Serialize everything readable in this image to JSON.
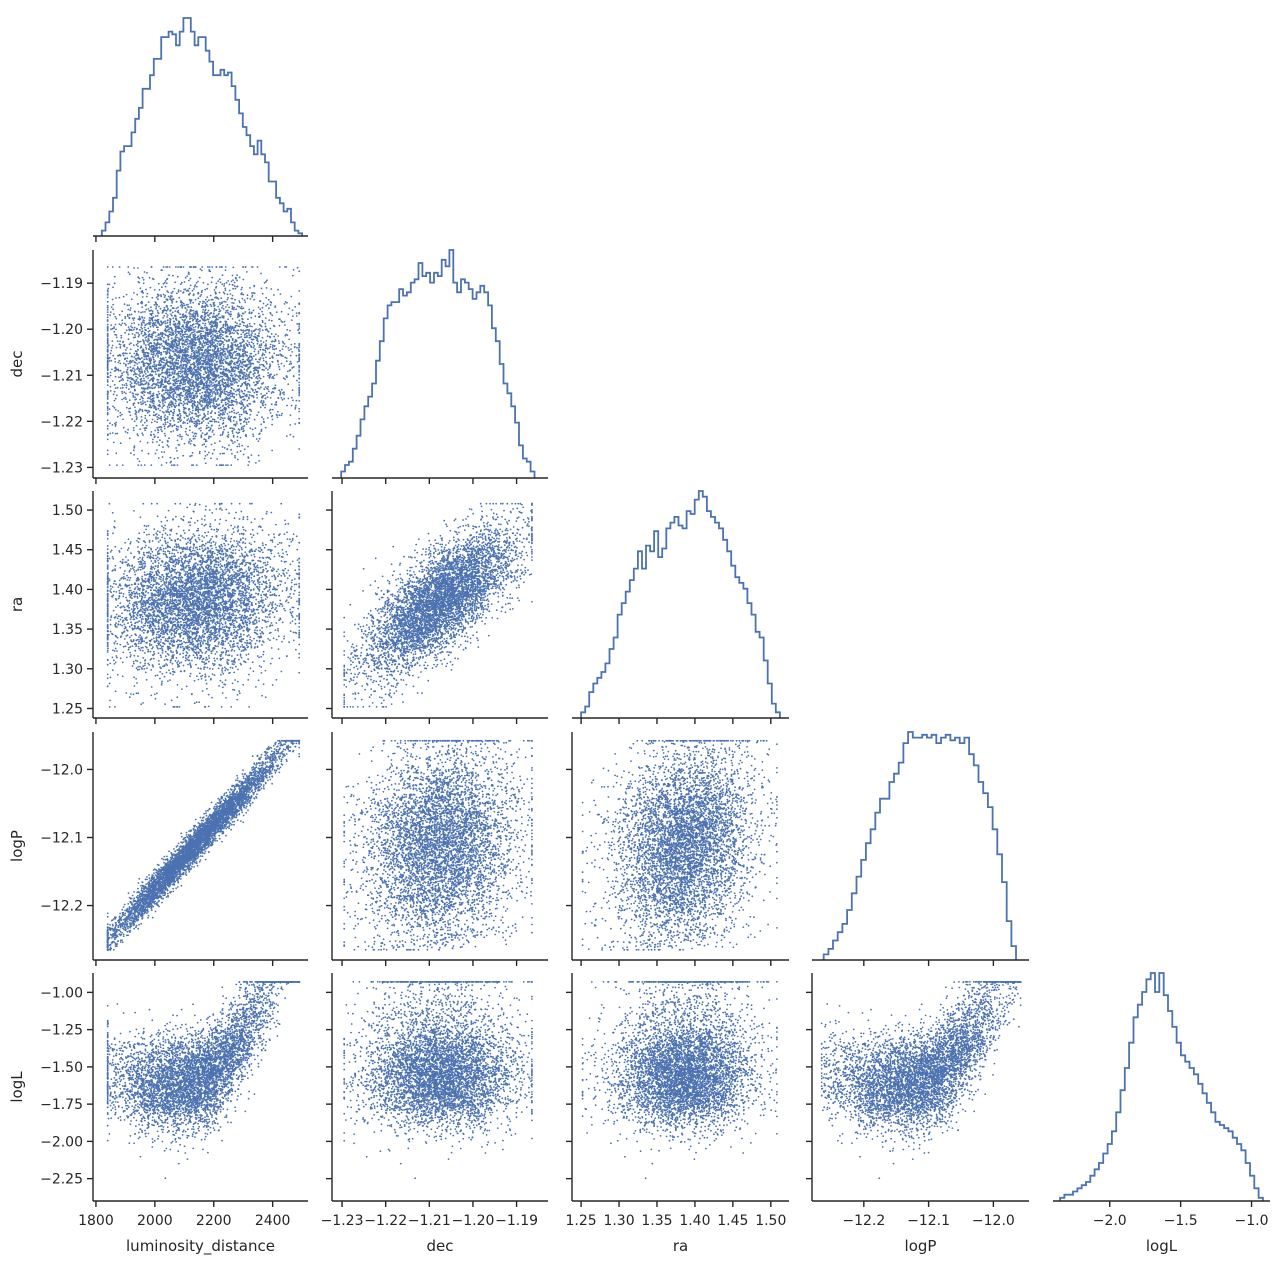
{
  "chart_data": {
    "type": "scatter",
    "layout": "corner-pairplot",
    "colors": {
      "series": "#4c72b0",
      "axis": "#262626",
      "background": "#ffffff"
    },
    "variables": [
      {
        "name": "luminosity_distance",
        "range": [
          1790,
          2520
        ],
        "ticks": [
          1800,
          2000,
          2200,
          2400
        ],
        "tick_labels": [
          "1800",
          "2000",
          "2200",
          "2400"
        ]
      },
      {
        "name": "dec",
        "range": [
          -1.2323,
          -1.1828
        ],
        "ticks": [
          -1.23,
          -1.22,
          -1.21,
          -1.2,
          -1.19
        ],
        "tick_labels": [
          "−1.23",
          "−1.22",
          "−1.21",
          "−1.20",
          "−1.19"
        ]
      },
      {
        "name": "ra",
        "range": [
          1.238,
          1.524
        ],
        "ticks": [
          1.25,
          1.3,
          1.35,
          1.4,
          1.45,
          1.5
        ],
        "tick_labels": [
          "1.25",
          "1.30",
          "1.35",
          "1.40",
          "1.45",
          "1.50"
        ]
      },
      {
        "name": "logP",
        "range": [
          -12.28,
          -11.945
        ],
        "ticks": [
          -12.2,
          -12.1,
          -12.0
        ],
        "tick_labels": [
          "−12.2",
          "−12.1",
          "−12.0"
        ]
      },
      {
        "name": "logL",
        "range": [
          -2.4,
          -0.87
        ],
        "ticks": [
          -2.25,
          -2.0,
          -1.75,
          -1.5,
          -1.25,
          -1.0
        ],
        "tick_labels": [
          "−2.25",
          "−2.00",
          "−1.75",
          "−1.50",
          "−1.25",
          "−1.00"
        ],
        "x_ticks": [
          -2.0,
          -1.5,
          -1.0
        ],
        "x_tick_labels": [
          "−2.0",
          "−1.5",
          "−1.0"
        ]
      }
    ],
    "histograms": [
      {
        "variable": "luminosity_distance",
        "bin_edges_range": [
          1820,
          2500
        ],
        "counts": [
          2,
          5,
          9,
          14,
          24,
          31,
          33,
          33,
          38,
          43,
          47,
          54,
          54,
          59,
          65,
          65,
          73,
          73,
          75,
          74,
          70,
          75,
          80,
          80,
          75,
          70,
          73,
          73,
          68,
          64,
          59,
          59,
          61,
          59,
          60,
          55,
          50,
          45,
          40,
          37,
          33,
          30,
          35,
          30,
          27,
          20,
          20,
          14,
          12,
          9,
          10,
          5,
          2,
          1
        ]
      },
      {
        "variable": "dec",
        "bin_edges_range": [
          -1.2302,
          -1.1859
        ],
        "counts": [
          2,
          4,
          5,
          9,
          13,
          18,
          22,
          25,
          29,
          36,
          42,
          49,
          53,
          54,
          54,
          58,
          56,
          57,
          60,
          61,
          66,
          62,
          63,
          60,
          63,
          62,
          67,
          65,
          70,
          60,
          57,
          61,
          60,
          58,
          55,
          57,
          59,
          57,
          53,
          46,
          42,
          35,
          29,
          26,
          22,
          17,
          10,
          6,
          5,
          2
        ]
      },
      {
        "variable": "ra",
        "bin_edges_range": [
          1.25,
          1.512
        ],
        "counts": [
          2,
          4,
          9,
          12,
          14,
          16,
          19,
          24,
          28,
          36,
          40,
          44,
          48,
          52,
          58,
          52,
          60,
          58,
          65,
          56,
          59,
          66,
          68,
          70,
          67,
          66,
          72,
          71,
          76,
          79,
          77,
          72,
          70,
          68,
          66,
          62,
          58,
          53,
          49,
          47,
          45,
          40,
          36,
          30,
          28,
          20,
          12,
          5,
          2
        ]
      },
      {
        "variable": "logP",
        "bin_edges_range": [
          -12.262,
          -11.965
        ],
        "counts": [
          2,
          4,
          7,
          10,
          13,
          18,
          24,
          30,
          36,
          42,
          47,
          53,
          58,
          58,
          64,
          67,
          71,
          78,
          82,
          80,
          80,
          81,
          80,
          81,
          78,
          80,
          81,
          79,
          80,
          78,
          80,
          74,
          70,
          64,
          60,
          55,
          47,
          38,
          28,
          14,
          5
        ]
      },
      {
        "variable": "logL",
        "bin_edges_range": [
          -2.35,
          -0.92
        ],
        "counts": [
          1,
          2,
          2,
          3,
          4,
          5,
          6,
          8,
          10,
          12,
          15,
          18,
          22,
          28,
          35,
          42,
          50,
          58,
          62,
          66,
          70,
          72,
          66,
          72,
          65,
          60,
          55,
          50,
          46,
          44,
          42,
          40,
          37,
          34,
          31,
          28,
          25,
          24,
          23,
          22,
          20,
          18,
          16,
          12,
          8,
          4,
          1
        ]
      }
    ],
    "scatter_pairs": [
      {
        "x": "luminosity_distance",
        "y": "dec",
        "n_points": 5200
      },
      {
        "x": "luminosity_distance",
        "y": "ra",
        "n_points": 5200
      },
      {
        "x": "dec",
        "y": "ra",
        "n_points": 5200
      },
      {
        "x": "luminosity_distance",
        "y": "logP",
        "n_points": 5200
      },
      {
        "x": "dec",
        "y": "logP",
        "n_points": 5200
      },
      {
        "x": "ra",
        "y": "logP",
        "n_points": 5200
      },
      {
        "x": "luminosity_distance",
        "y": "logL",
        "n_points": 5200
      },
      {
        "x": "dec",
        "y": "logL",
        "n_points": 5200
      },
      {
        "x": "ra",
        "y": "logL",
        "n_points": 5200
      },
      {
        "x": "logP",
        "y": "logL",
        "n_points": 5200
      }
    ],
    "title": "",
    "grid": false,
    "legend": "none"
  }
}
